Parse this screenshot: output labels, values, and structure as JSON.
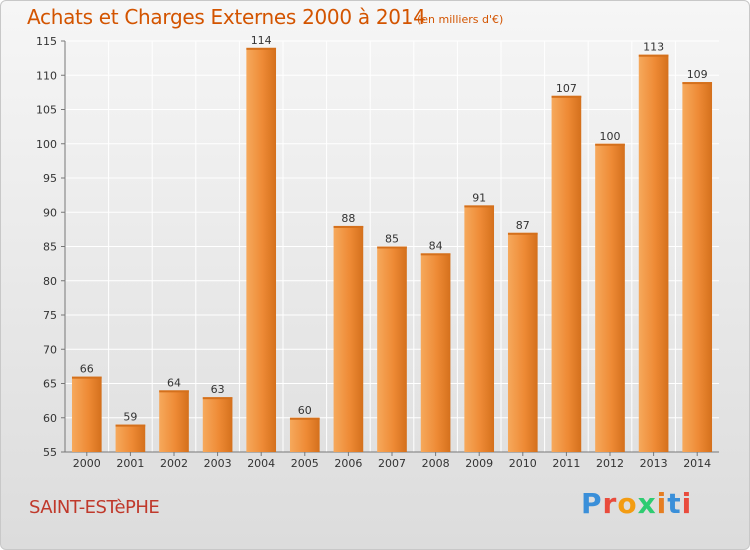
{
  "title": "Achats et Charges Externes 2000 à 2014",
  "subtitle": "(en milliers d'€)",
  "commune": "SAINT-ESTèPHE",
  "logo": {
    "text": "Proxiti",
    "letter_colors": [
      "#3a8fd9",
      "#e94b3c",
      "#f39c12",
      "#2ecc71",
      "#e67e22",
      "#3a8fd9",
      "#e94b3c"
    ]
  },
  "chart_data": {
    "type": "bar",
    "categories": [
      "2000",
      "2001",
      "2002",
      "2003",
      "2004",
      "2005",
      "2006",
      "2007",
      "2008",
      "2009",
      "2010",
      "2011",
      "2012",
      "2013",
      "2014"
    ],
    "values": [
      66,
      59,
      64,
      63,
      114,
      60,
      88,
      85,
      84,
      91,
      87,
      107,
      100,
      113,
      109
    ],
    "ylim": [
      55,
      115
    ],
    "yticks": [
      55,
      60,
      65,
      70,
      75,
      80,
      85,
      90,
      95,
      100,
      105,
      110,
      115
    ],
    "grid": true,
    "bar_color": "#ee8a35",
    "bar_highlight": "#f6a95c",
    "bar_shadow": "#d4701c"
  }
}
